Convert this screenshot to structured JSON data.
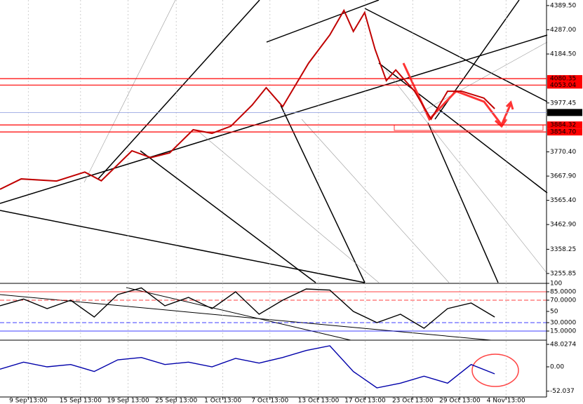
{
  "chart_data": [
    {
      "type": "line",
      "xlim": [
        0,
        116
      ],
      "xticks": [
        {
          "value": 6,
          "label": "9 Sep 13:00"
        },
        {
          "value": 17.1,
          "label": "15 Sep 13:00"
        },
        {
          "value": 27.2,
          "label": "19 Sep 13:00"
        },
        {
          "value": 37.4,
          "label": "25 Sep 13:00"
        },
        {
          "value": 47.3,
          "label": "1 Oct 13:00"
        },
        {
          "value": 57.3,
          "label": "7 Oct 13:00"
        },
        {
          "value": 67.6,
          "label": "13 Oct 13:00"
        },
        {
          "value": 77.5,
          "label": "17 Oct 13:00"
        },
        {
          "value": 87.6,
          "label": "23 Oct 13:00"
        },
        {
          "value": 97.6,
          "label": "29 Oct 13:00"
        },
        {
          "value": 107.4,
          "label": "4 Nov 13:00"
        }
      ],
      "ylim": [
        3217,
        4413
      ],
      "yticks": [
        {
          "value": 4389.5,
          "label": "4389.50"
        },
        {
          "value": 4287,
          "label": "4287.00"
        },
        {
          "value": 4184.5,
          "label": "4184.50"
        },
        3977.45,
        {
          "value": 3770.4,
          "label": "3770.40"
        },
        {
          "value": 3667.9,
          "label": "3667.90"
        },
        {
          "value": 3565.4,
          "label": "3565.40"
        },
        {
          "value": 3462.9,
          "label": "3462.90"
        },
        3358.25,
        3255.85
      ],
      "price_levels": [
        {
          "value": 4080.35,
          "label": "4080.35",
          "color": "#ff0000"
        },
        {
          "value": 4053.04,
          "label": "4053.04",
          "color": "#ff0000"
        },
        {
          "value": 3937.03,
          "label": "3937.03",
          "color": "#000000"
        },
        {
          "value": 3884.32,
          "label": "3884.32",
          "color": "#ff0000"
        },
        {
          "value": 3854.7,
          "label": "3854.70",
          "color": "#ff0000"
        }
      ],
      "series": [
        {
          "color": "#c00000",
          "x": [
            0,
            4.5,
            12,
            18,
            21.5,
            28,
            32,
            36,
            41,
            45,
            49,
            53.5,
            56.5,
            60,
            65.5,
            70,
            73,
            75,
            77.4,
            79.6,
            82,
            84,
            88,
            91.5,
            95,
            98,
            102.7,
            105
          ],
          "values": [
            3612,
            3656,
            3647,
            3685,
            3648,
            3775,
            3746,
            3766,
            3864,
            3849,
            3879,
            3968,
            4042,
            3962,
            4146,
            4265,
            4369,
            4280,
            4360,
            4205,
            4072,
            4117,
            4027,
            3909,
            4027,
            4027,
            3998,
            3953
          ]
        }
      ]
    },
    {
      "type": "line",
      "xlim": [
        0,
        116
      ],
      "ylim": [
        0,
        100
      ],
      "yticks": [
        100,
        {
          "value": 85,
          "label": "85.0000"
        },
        {
          "value": 70,
          "label": "70.0000"
        },
        50,
        {
          "value": 30,
          "label": "30.0000"
        },
        {
          "value": 15,
          "label": "15.0000"
        }
      ],
      "series": [
        {
          "color": "#000000",
          "x": [
            0,
            5,
            10,
            15,
            20,
            25,
            30,
            35,
            40,
            45,
            50,
            55,
            60,
            65,
            70,
            75,
            80,
            85,
            90,
            95,
            100,
            105
          ],
          "values": [
            60,
            72,
            55,
            70,
            40,
            80,
            92,
            60,
            75,
            55,
            85,
            45,
            70,
            90,
            88,
            50,
            30,
            45,
            20,
            55,
            65,
            40
          ]
        }
      ]
    },
    {
      "type": "line",
      "xlim": [
        0,
        116
      ],
      "ylim": [
        -64.5,
        55.5
      ],
      "yticks": [
        48.0274,
        {
          "value": 0,
          "label": "0.00"
        },
        -52.037
      ],
      "series": [
        {
          "color": "#0000aa",
          "x": [
            0,
            5,
            10,
            15,
            20,
            25,
            30,
            35,
            40,
            45,
            50,
            55,
            60,
            65,
            70,
            75,
            80,
            85,
            90,
            95,
            100,
            105
          ],
          "values": [
            -5,
            10,
            0,
            5,
            -10,
            15,
            20,
            5,
            10,
            0,
            18,
            8,
            20,
            35,
            45,
            -10,
            -45,
            -35,
            -20,
            -35,
            5,
            -15
          ]
        }
      ]
    }
  ]
}
